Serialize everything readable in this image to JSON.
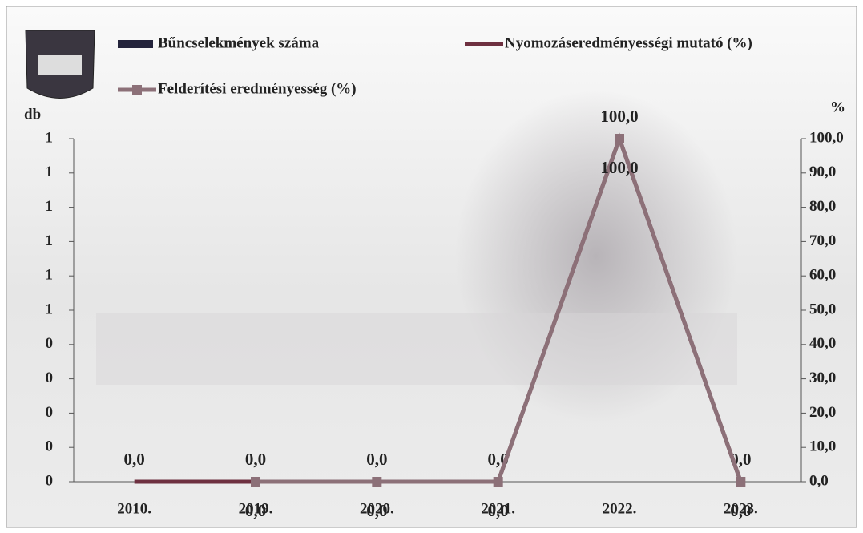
{
  "chart_data": {
    "type": "combo",
    "y_axis_label": "db",
    "y2_axis_label": "%",
    "categories": [
      "2010.",
      "2019.",
      "2020.",
      "2021.",
      "2022.",
      "2023."
    ],
    "ylim": [
      0,
      1
    ],
    "yticks": [
      {
        "value": 0,
        "label": "0"
      },
      {
        "value": 0.1,
        "label": "0"
      },
      {
        "value": 0.2,
        "label": "0"
      },
      {
        "value": 0.3,
        "label": "0"
      },
      {
        "value": 0.4,
        "label": "0"
      },
      {
        "value": 0.5,
        "label": "1"
      },
      {
        "value": 0.6,
        "label": "1"
      },
      {
        "value": 0.7,
        "label": "1"
      },
      {
        "value": 0.8,
        "label": "1"
      },
      {
        "value": 0.9,
        "label": "1"
      },
      {
        "value": 1,
        "label": "1"
      }
    ],
    "y2lim": [
      0,
      100
    ],
    "y2ticks": [
      {
        "value": 0,
        "label": "0,0"
      },
      {
        "value": 10,
        "label": "10,0"
      },
      {
        "value": 20,
        "label": "20,0"
      },
      {
        "value": 30,
        "label": "30,0"
      },
      {
        "value": 40,
        "label": "40,0"
      },
      {
        "value": 50,
        "label": "50,0"
      },
      {
        "value": 60,
        "label": "60,0"
      },
      {
        "value": 70,
        "label": "70,0"
      },
      {
        "value": 80,
        "label": "80,0"
      },
      {
        "value": 90,
        "label": "90,0"
      },
      {
        "value": 100,
        "label": "100,0"
      }
    ],
    "series": [
      {
        "name": "Bűncselekmények száma",
        "type": "bar",
        "color": "#24243c",
        "values": [
          0,
          0,
          0,
          0,
          0,
          0
        ]
      },
      {
        "name": "Nyomozáseredményességi mutató (%)",
        "type": "line",
        "axis": "y2",
        "color": "#6e3040",
        "values": [
          0,
          0,
          0,
          0,
          100,
          0
        ],
        "value_labels": [
          "0,0",
          "0,0",
          "0,0",
          "0,0",
          "100,0",
          "0,0"
        ]
      },
      {
        "name": "Felderítési eredményesség (%)",
        "type": "line",
        "axis": "y2",
        "marker": "square",
        "color": "#8c7078",
        "values": [
          null,
          0,
          0,
          0,
          100,
          0
        ],
        "value_labels": [
          null,
          "0,0",
          "0,0",
          "0,0",
          "100,0",
          "0,0"
        ]
      }
    ]
  }
}
